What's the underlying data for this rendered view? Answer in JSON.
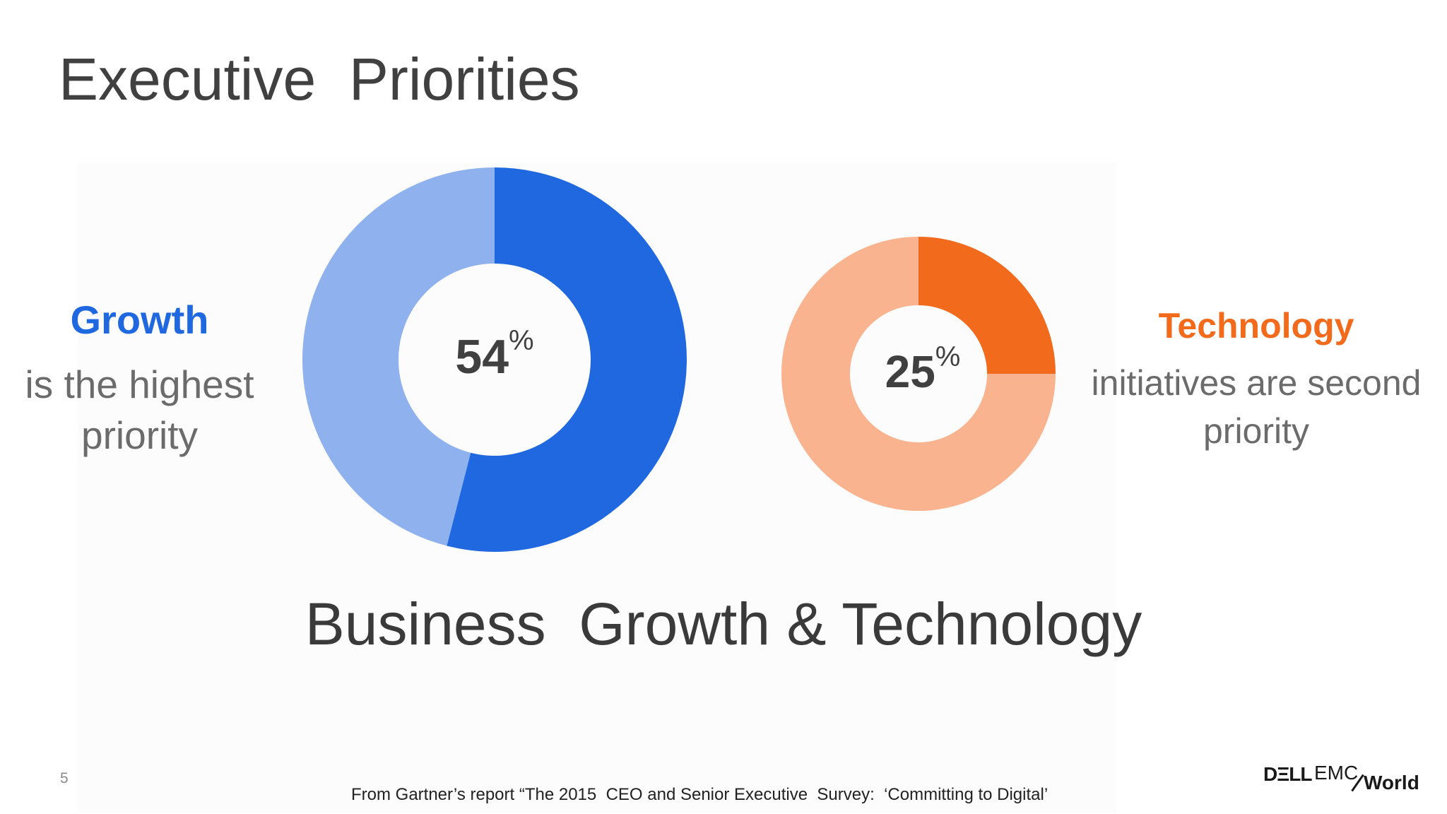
{
  "title": "Executive  Priorities",
  "left": {
    "heading": "Growth",
    "line1": "is the highest",
    "line2": "priority",
    "percent_value": "54",
    "percent_sign": "%",
    "share": 0.54,
    "color_main": "#1f68e0",
    "color_rest": "#8fb1ee",
    "heading_color": "#1f68e0"
  },
  "right": {
    "heading": "Technology",
    "line1": "initiatives are second",
    "line2": "priority",
    "percent_value": "25",
    "percent_sign": "%",
    "share": 0.25,
    "color_main": "#f26b1d",
    "color_rest": "#f9b48f",
    "heading_color": "#f26b1d"
  },
  "subtitle": "Business  Growth & Technology",
  "page_number": "5",
  "footnote": "From Gartner’s report “The 2015  CEO and Senior Executive  Survey:  ‘Committing to Digital’",
  "logo": {
    "dell": "DΞLL",
    "emc": "EMC",
    "world": "World"
  }
}
